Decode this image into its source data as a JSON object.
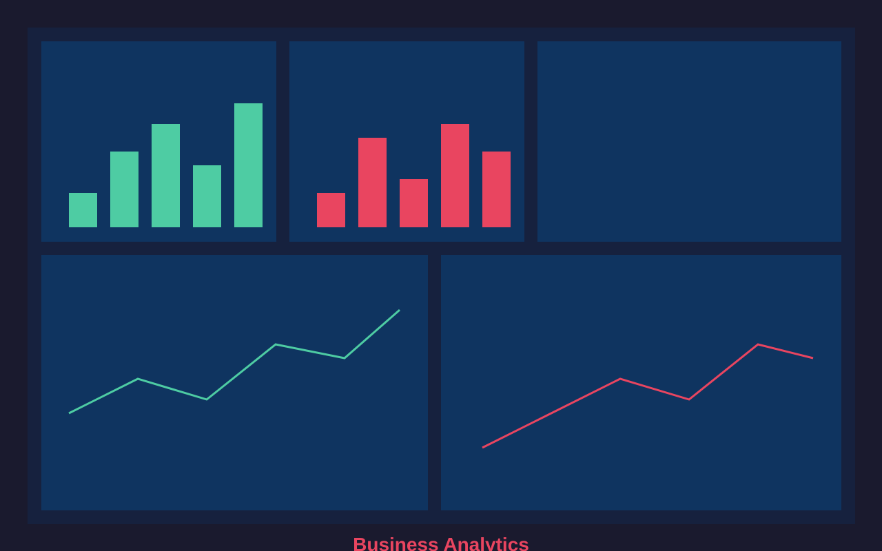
{
  "title": "Business Analytics",
  "chart_data": [
    {
      "type": "bar",
      "color": "#4ecca3",
      "values": [
        50,
        110,
        150,
        90,
        180
      ],
      "ylim": [
        0,
        200
      ]
    },
    {
      "type": "bar",
      "color": "#e94560",
      "values": [
        50,
        130,
        70,
        150,
        110
      ],
      "ylim": [
        0,
        200
      ]
    },
    {
      "type": "line",
      "color": "#4ecca3",
      "x": [
        0,
        1,
        2,
        3,
        4,
        4.8
      ],
      "values": [
        100,
        150,
        120,
        200,
        180,
        250
      ],
      "xlim": [
        0,
        4.8
      ],
      "ylim": [
        0,
        300
      ]
    },
    {
      "type": "line",
      "color": "#e94560",
      "x": [
        0,
        1,
        2,
        3,
        4,
        4.8
      ],
      "values": [
        50,
        100,
        150,
        120,
        200,
        180
      ],
      "xlim": [
        0,
        4.8
      ],
      "ylim": [
        0,
        300
      ]
    }
  ]
}
